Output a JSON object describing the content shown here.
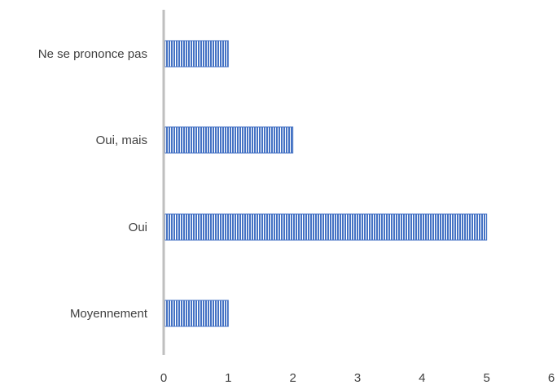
{
  "chart_data": {
    "type": "bar",
    "orientation": "horizontal",
    "categories": [
      "Ne se prononce pas",
      "Oui, mais",
      "Oui",
      "Moyennement"
    ],
    "values": [
      1,
      2,
      5,
      1
    ],
    "xlim": [
      0,
      6
    ],
    "x_ticks": [
      "0",
      "1",
      "2",
      "3",
      "4",
      "5",
      "6"
    ],
    "grid": false,
    "legend": "none",
    "bar_color": "#4472c4",
    "bar_pattern": "vertical-stripes",
    "axis_color": "#bfbfbf"
  }
}
